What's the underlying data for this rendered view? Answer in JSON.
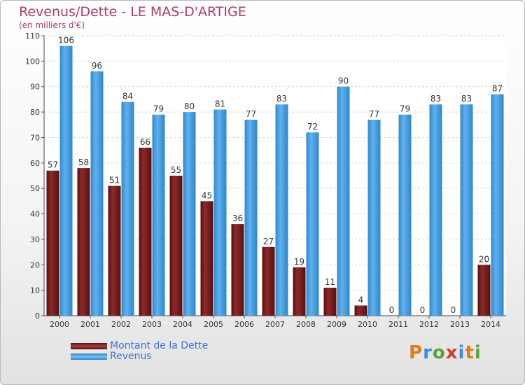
{
  "title": "Revenus/Dette - LE MAS-D'ARTIGE",
  "subtitle": "(en milliers d'€)",
  "logo": {
    "letters": [
      "P",
      "r",
      "o",
      "x",
      "i",
      "t",
      "i"
    ],
    "colors": [
      "#e27b1f",
      "#3b8fd6",
      "#5aa33a",
      "#d43a2a",
      "#3b8fd6",
      "#e27b1f",
      "#5aa33a"
    ]
  },
  "chart_data": {
    "type": "bar",
    "categories": [
      "2000",
      "2001",
      "2002",
      "2003",
      "2004",
      "2005",
      "2006",
      "2007",
      "2008",
      "2009",
      "2010",
      "2011",
      "2012",
      "2013",
      "2014"
    ],
    "series": [
      {
        "name": "Montant de la Dette",
        "color": "#7a1c1c",
        "values": [
          57,
          58,
          51,
          66,
          55,
          45,
          36,
          27,
          19,
          11,
          4,
          0,
          0,
          0,
          20
        ]
      },
      {
        "name": "Revenus",
        "color": "#3d9be0",
        "values": [
          106,
          96,
          84,
          79,
          80,
          81,
          77,
          83,
          72,
          90,
          77,
          79,
          83,
          83,
          87
        ]
      }
    ],
    "ylim": [
      0,
      110
    ],
    "yticks": [
      0,
      10,
      20,
      30,
      40,
      50,
      60,
      70,
      80,
      90,
      100,
      110
    ],
    "grid": true,
    "legend": "bottom-left"
  }
}
